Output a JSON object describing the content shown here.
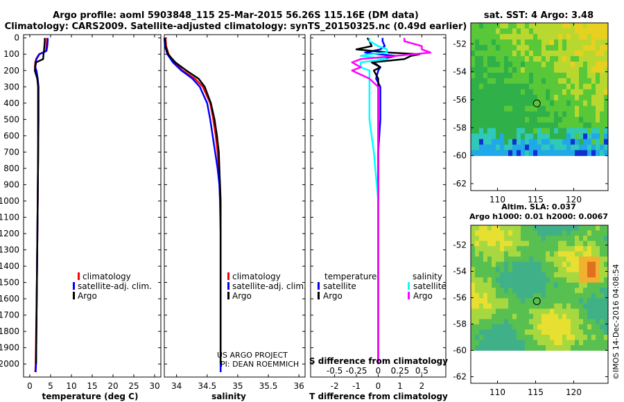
{
  "header": {
    "line1": "Argo profile: aoml 5903848_115 25-Mar-2015 56.26S 115.16E (DM data)",
    "line2": "Climatology: CARS2009. Satellite-adjusted climatology: synTS_20150325.nc (0.49d earlier)"
  },
  "colors": {
    "climatology": "#ff0000",
    "sat_adj": "#0000ff",
    "argo": "#000000",
    "sat_salinity": "#00ffff",
    "argo_salinity_diff": "#ff00ff"
  },
  "depth_ticks": [
    "0",
    "100",
    "200",
    "300",
    "400",
    "500",
    "600",
    "700",
    "800",
    "900",
    "1000",
    "1100",
    "1200",
    "1300",
    "1400",
    "1500",
    "1600",
    "1700",
    "1800",
    "1900",
    "2000"
  ],
  "chart_data": [
    {
      "type": "line",
      "id": "temperature",
      "xlabel": "temperature (deg C)",
      "ylabel": "depth",
      "xlim": [
        -1.5,
        31.5
      ],
      "ylim": [
        2080,
        -20
      ],
      "xticks": [
        "0",
        "5",
        "10",
        "15",
        "20",
        "25",
        "30"
      ],
      "xtick_values": [
        0,
        5,
        10,
        15,
        20,
        25,
        30
      ],
      "legend": [
        "climatology",
        "satellite-adj. clim.",
        "Argo"
      ],
      "depth": [
        0,
        20,
        50,
        80,
        100,
        130,
        150,
        180,
        200,
        250,
        300,
        400,
        500,
        700,
        1000,
        1500,
        2000,
        2050
      ],
      "series": [
        {
          "name": "climatology",
          "color": "#ff0000",
          "values": [
            4.1,
            4.1,
            4.0,
            3.9,
            2.2,
            1.5,
            1.3,
            1.2,
            1.5,
            1.8,
            2.0,
            2.0,
            2.0,
            2.0,
            1.9,
            1.7,
            1.4,
            1.3
          ]
        },
        {
          "name": "satellite-adj. clim.",
          "color": "#0000ff",
          "values": [
            4.3,
            4.3,
            4.2,
            4.0,
            2.3,
            1.6,
            1.4,
            1.3,
            1.6,
            1.9,
            2.1,
            2.1,
            2.1,
            2.0,
            1.9,
            1.7,
            1.5,
            1.4
          ]
        },
        {
          "name": "Argo",
          "color": "#000000",
          "values": [
            3.6,
            3.6,
            3.5,
            3.4,
            3.3,
            3.2,
            1.5,
            1.3,
            1.2,
            1.8,
            2.0,
            2.0,
            2.0,
            2.0,
            1.9,
            1.7,
            1.5,
            null
          ]
        }
      ]
    },
    {
      "type": "line",
      "id": "salinity",
      "xlabel": "salinity",
      "ylabel": "depth",
      "xlim": [
        33.8,
        36.1
      ],
      "ylim": [
        2080,
        -20
      ],
      "xticks": [
        "34",
        "34.5",
        "35",
        "35.5",
        "36"
      ],
      "xtick_values": [
        34,
        34.5,
        35,
        35.5,
        36
      ],
      "legend": [
        "climatology",
        "satellite-adj. clim.",
        "Argo"
      ],
      "depth": [
        0,
        50,
        100,
        150,
        200,
        250,
        300,
        400,
        500,
        600,
        700,
        800,
        900,
        1000,
        1200,
        1500,
        2000,
        2050
      ],
      "series": [
        {
          "name": "climatology",
          "color": "#ff0000",
          "values": [
            33.82,
            33.83,
            33.87,
            33.96,
            34.1,
            34.3,
            34.43,
            34.55,
            34.6,
            34.64,
            34.67,
            34.69,
            34.71,
            34.72,
            34.72,
            34.72,
            34.72,
            34.72
          ]
        },
        {
          "name": "satellite-adj. clim.",
          "color": "#0000ff",
          "values": [
            33.8,
            33.81,
            33.85,
            33.94,
            34.08,
            34.26,
            34.38,
            34.5,
            34.55,
            34.59,
            34.63,
            34.67,
            34.7,
            34.71,
            34.72,
            34.72,
            34.72,
            34.72
          ]
        },
        {
          "name": "Argo",
          "color": "#000000",
          "values": [
            33.81,
            33.82,
            33.86,
            33.98,
            34.16,
            34.36,
            34.46,
            34.56,
            34.62,
            34.66,
            34.69,
            34.7,
            34.71,
            34.72,
            34.72,
            34.72,
            34.72,
            null
          ]
        }
      ]
    },
    {
      "type": "line",
      "id": "difference",
      "xlabel": "T difference from climatology",
      "x2label": "S difference from climatology",
      "ylabel": "depth",
      "xlim": [
        -3.1,
        3.1
      ],
      "ylim": [
        2080,
        -20
      ],
      "xticks": [
        "-2",
        "-1",
        "0",
        "1",
        "2"
      ],
      "xtick_values": [
        -2,
        -1,
        0,
        1,
        2
      ],
      "x2ticks": [
        "-0.5",
        "-0.25",
        "0",
        "0.25",
        "0.5"
      ],
      "x2tick_values": [
        -0.5,
        -0.25,
        0,
        0.25,
        0.5
      ],
      "legend_temperature_title": "temperature",
      "legend_salinity_title": "salinity",
      "legend_temperature": [
        "satellite",
        "Argo"
      ],
      "legend_salinity": [
        "satellite",
        "Argo"
      ],
      "depth": [
        0,
        20,
        50,
        70,
        90,
        100,
        110,
        130,
        150,
        180,
        200,
        250,
        300,
        400,
        500,
        700,
        1000,
        1500,
        2000
      ],
      "series": [
        {
          "name": "temperature satellite",
          "color": "#0000ff",
          "values": [
            0.2,
            0.2,
            0.3,
            0.1,
            -0.6,
            0.0,
            0.8,
            0.2,
            -0.2,
            0.1,
            0.0,
            -0.1,
            0.1,
            0.1,
            0.1,
            0.0,
            0.0,
            0.0,
            0.0
          ]
        },
        {
          "name": "temperature Argo",
          "color": "#000000",
          "values": [
            -0.5,
            -0.4,
            -0.3,
            -1.0,
            0.5,
            1.9,
            1.5,
            1.2,
            -0.3,
            0.1,
            -0.2,
            0.0,
            0.0,
            0.0,
            0.0,
            0.0,
            0.0,
            0.0,
            0.0
          ]
        },
        {
          "name": "salinity satellite",
          "color": "#00ffff",
          "values": [
            -0.1,
            -0.1,
            0.0,
            0.1,
            0.1,
            -0.1,
            -0.2,
            0.1,
            -0.2,
            -0.2,
            -0.1,
            -0.1,
            -0.1,
            -0.1,
            -0.1,
            -0.05,
            0.0,
            0.0,
            0.0
          ]
        },
        {
          "name": "salinity Argo",
          "color": "#ff00ff",
          "values": [
            0.3,
            0.3,
            0.5,
            0.5,
            0.6,
            0.4,
            0.2,
            -0.2,
            -0.3,
            -0.2,
            -0.3,
            -0.1,
            0.0,
            0.0,
            0.0,
            0.0,
            0.0,
            0.0,
            0.0
          ]
        }
      ]
    },
    {
      "type": "heatmap",
      "id": "sst_map",
      "title": "sat. SST: 4 Argo: 3.48",
      "xlim": [
        106.5,
        124.5
      ],
      "ylim": [
        -62.5,
        -50.5
      ],
      "xticks": [
        "110",
        "115",
        "120"
      ],
      "xtick_values": [
        110,
        115,
        120
      ],
      "yticks": [
        "-52",
        "-54",
        "-56",
        "-58",
        "-60",
        "-62"
      ],
      "ytick_values": [
        -52,
        -54,
        -56,
        -58,
        -60,
        -62
      ],
      "data_extent_lat": [
        -60,
        -50.5
      ],
      "profile_location": {
        "lon": 115.16,
        "lat": -56.26
      }
    },
    {
      "type": "heatmap",
      "id": "sla_map",
      "title": "Altim. SLA: 0.037",
      "subtitle": "Argo h1000: 0.01 h2000: 0.0067",
      "xlim": [
        106.5,
        124.5
      ],
      "ylim": [
        -62.5,
        -50.5
      ],
      "xticks": [
        "110",
        "115",
        "120"
      ],
      "xtick_values": [
        110,
        115,
        120
      ],
      "yticks": [
        "-52",
        "-54",
        "-56",
        "-58",
        "-60",
        "-62"
      ],
      "ytick_values": [
        -52,
        -54,
        -56,
        -58,
        -60,
        -62
      ],
      "data_extent_lat": [
        -60,
        -50.5
      ],
      "profile_location": {
        "lon": 115.16,
        "lat": -56.26
      }
    }
  ],
  "notes": {
    "project": "US ARGO PROJECT",
    "pi": "PI: DEAN ROEMMICH",
    "stamp": "©IMOS 14-Dec-2016 04:08:54"
  }
}
